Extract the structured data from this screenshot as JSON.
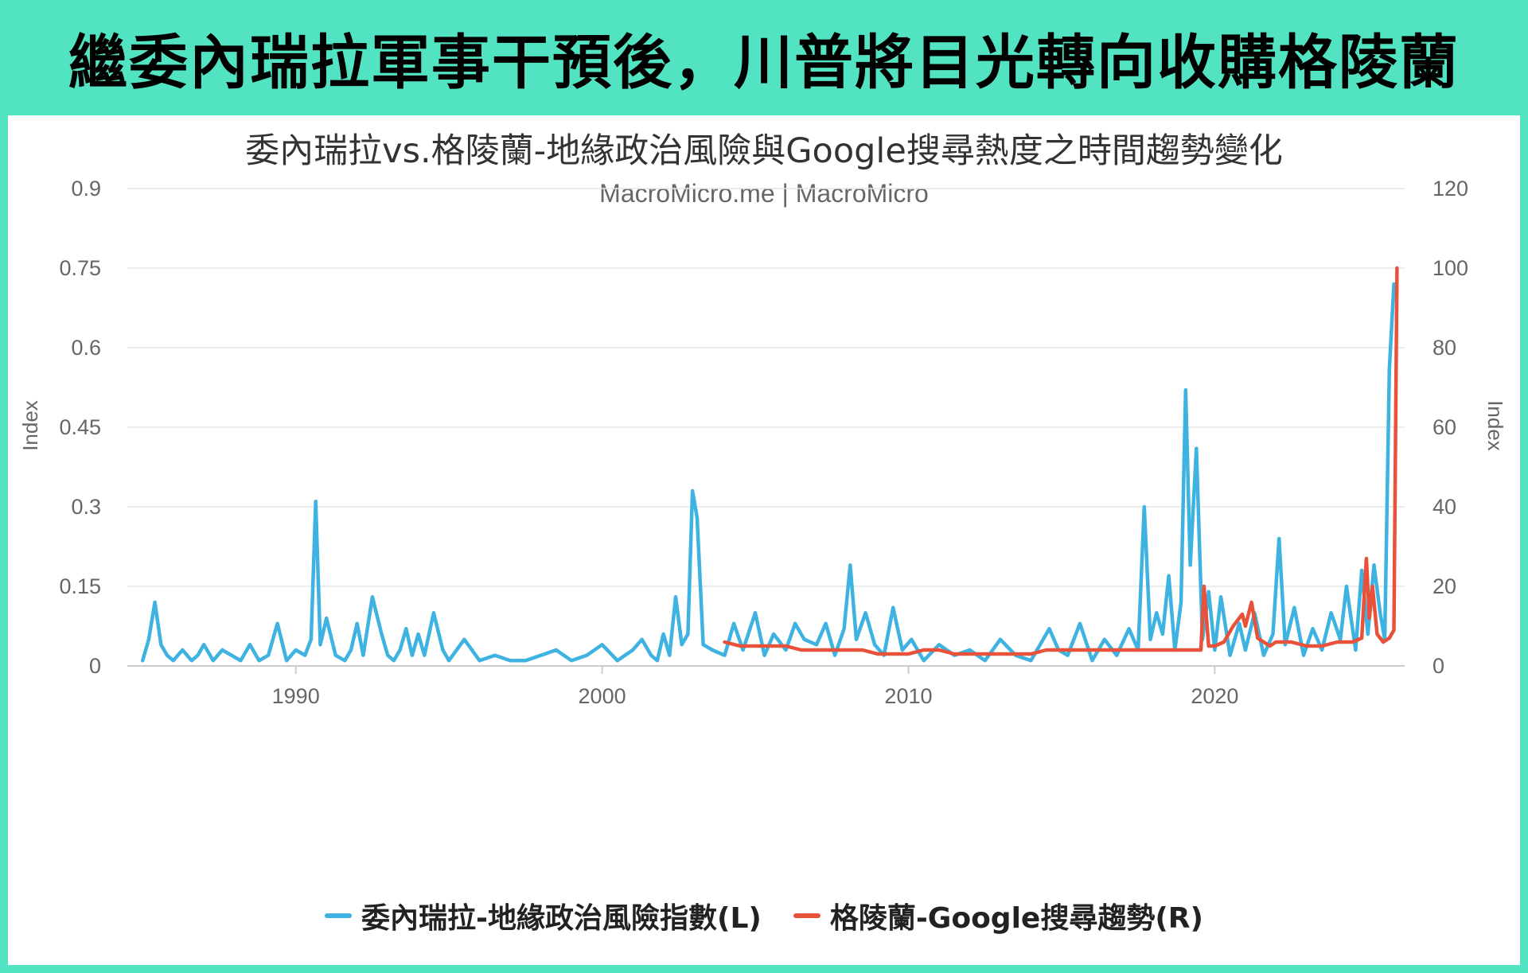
{
  "banner": {
    "title": "繼委內瑞拉軍事干預後，川普將目光轉向收購格陵蘭"
  },
  "colors": {
    "background": "#52e3c2",
    "venezuela": "#3eb2e0",
    "greenland": "#e8523b"
  },
  "chart_data": {
    "type": "line",
    "title": "委內瑞拉vs.格陵蘭-地緣政治風險與Google搜尋熱度之時間趨勢變化",
    "subtitle": "MacroMicro.me | MacroMicro",
    "ylabel_left": "Index",
    "ylabel_right": "Index",
    "xlim": [
      1984.5,
      2026.2
    ],
    "ylim_left": [
      0,
      0.9
    ],
    "ylim_right": [
      0,
      120
    ],
    "x_ticks": [
      {
        "label": "1990",
        "value": 1990
      },
      {
        "label": "2000",
        "value": 2000
      },
      {
        "label": "2010",
        "value": 2010
      },
      {
        "label": "2020",
        "value": 2020
      }
    ],
    "y_ticks_left": [
      {
        "label": "0",
        "value": 0
      },
      {
        "label": "0.15",
        "value": 0.15
      },
      {
        "label": "0.3",
        "value": 0.3
      },
      {
        "label": "0.45",
        "value": 0.45
      },
      {
        "label": "0.6",
        "value": 0.6
      },
      {
        "label": "0.75",
        "value": 0.75
      },
      {
        "label": "0.9",
        "value": 0.9
      }
    ],
    "y_ticks_right": [
      {
        "label": "0",
        "value": 0
      },
      {
        "label": "20",
        "value": 20
      },
      {
        "label": "40",
        "value": 40
      },
      {
        "label": "60",
        "value": 60
      },
      {
        "label": "80",
        "value": 80
      },
      {
        "label": "100",
        "value": 100
      },
      {
        "label": "120",
        "value": 120
      }
    ],
    "grid": true,
    "legend_position": "bottom",
    "series": [
      {
        "name": "委內瑞拉-地緣政治風險指數(L)",
        "axis": "left",
        "color": "#3eb2e0",
        "x": [
          1985.0,
          1985.2,
          1985.4,
          1985.6,
          1985.8,
          1986.0,
          1986.3,
          1986.6,
          1986.8,
          1987.0,
          1987.3,
          1987.6,
          1987.9,
          1988.2,
          1988.5,
          1988.8,
          1989.1,
          1989.4,
          1989.7,
          1990.0,
          1990.3,
          1990.5,
          1990.65,
          1990.8,
          1991.0,
          1991.3,
          1991.6,
          1991.8,
          1992.0,
          1992.2,
          1992.5,
          1992.8,
          1993.0,
          1993.2,
          1993.4,
          1993.6,
          1993.8,
          1994.0,
          1994.2,
          1994.5,
          1994.8,
          1995.0,
          1995.5,
          1996.0,
          1996.5,
          1997.0,
          1997.5,
          1998.0,
          1998.5,
          1999.0,
          1999.5,
          2000.0,
          2000.5,
          2001.0,
          2001.3,
          2001.6,
          2001.8,
          2002.0,
          2002.2,
          2002.4,
          2002.6,
          2002.8,
          2002.95,
          2003.1,
          2003.3,
          2003.6,
          2004.0,
          2004.3,
          2004.6,
          2005.0,
          2005.3,
          2005.6,
          2006.0,
          2006.3,
          2006.6,
          2007.0,
          2007.3,
          2007.6,
          2007.9,
          2008.1,
          2008.3,
          2008.6,
          2008.9,
          2009.2,
          2009.5,
          2009.8,
          2010.1,
          2010.5,
          2011.0,
          2011.5,
          2012.0,
          2012.5,
          2013.0,
          2013.5,
          2014.0,
          2014.3,
          2014.6,
          2014.9,
          2015.2,
          2015.6,
          2016.0,
          2016.4,
          2016.8,
          2017.2,
          2017.5,
          2017.7,
          2017.9,
          2018.1,
          2018.3,
          2018.5,
          2018.7,
          2018.9,
          2019.05,
          2019.2,
          2019.4,
          2019.6,
          2019.8,
          2020.0,
          2020.2,
          2020.5,
          2020.8,
          2021.0,
          2021.3,
          2021.6,
          2021.9,
          2022.1,
          2022.3,
          2022.6,
          2022.9,
          2023.2,
          2023.5,
          2023.8,
          2024.1,
          2024.3,
          2024.6,
          2024.8,
          2025.0,
          2025.2,
          2025.4,
          2025.55,
          2025.7,
          2025.85
        ],
        "values": [
          0.01,
          0.05,
          0.12,
          0.04,
          0.02,
          0.01,
          0.03,
          0.01,
          0.02,
          0.04,
          0.01,
          0.03,
          0.02,
          0.01,
          0.04,
          0.01,
          0.02,
          0.08,
          0.01,
          0.03,
          0.02,
          0.05,
          0.31,
          0.04,
          0.09,
          0.02,
          0.01,
          0.03,
          0.08,
          0.02,
          0.13,
          0.06,
          0.02,
          0.01,
          0.03,
          0.07,
          0.02,
          0.06,
          0.02,
          0.1,
          0.03,
          0.01,
          0.05,
          0.01,
          0.02,
          0.01,
          0.01,
          0.02,
          0.03,
          0.01,
          0.02,
          0.04,
          0.01,
          0.03,
          0.05,
          0.02,
          0.01,
          0.06,
          0.02,
          0.13,
          0.04,
          0.06,
          0.33,
          0.28,
          0.04,
          0.03,
          0.02,
          0.08,
          0.03,
          0.1,
          0.02,
          0.06,
          0.03,
          0.08,
          0.05,
          0.04,
          0.08,
          0.02,
          0.07,
          0.19,
          0.05,
          0.1,
          0.04,
          0.02,
          0.11,
          0.03,
          0.05,
          0.01,
          0.04,
          0.02,
          0.03,
          0.01,
          0.05,
          0.02,
          0.01,
          0.04,
          0.07,
          0.03,
          0.02,
          0.08,
          0.01,
          0.05,
          0.02,
          0.07,
          0.03,
          0.3,
          0.05,
          0.1,
          0.06,
          0.17,
          0.03,
          0.12,
          0.52,
          0.19,
          0.41,
          0.05,
          0.14,
          0.03,
          0.13,
          0.02,
          0.08,
          0.03,
          0.1,
          0.02,
          0.06,
          0.24,
          0.04,
          0.11,
          0.02,
          0.07,
          0.03,
          0.1,
          0.05,
          0.15,
          0.03,
          0.18,
          0.06,
          0.19,
          0.1,
          0.05,
          0.56,
          0.72
        ]
      },
      {
        "name": "格陵蘭-Google搜尋趨勢(R)",
        "axis": "right",
        "color": "#e8523b",
        "x": [
          2004.0,
          2004.5,
          2005.0,
          2005.5,
          2006.0,
          2006.5,
          2007.0,
          2007.5,
          2008.0,
          2008.5,
          2009.0,
          2009.5,
          2010.0,
          2010.5,
          2011.0,
          2011.5,
          2012.0,
          2012.5,
          2013.0,
          2013.5,
          2014.0,
          2014.5,
          2015.0,
          2015.5,
          2016.0,
          2016.5,
          2017.0,
          2017.5,
          2018.0,
          2018.5,
          2019.0,
          2019.4,
          2019.55,
          2019.65,
          2019.8,
          2020.0,
          2020.3,
          2020.6,
          2020.9,
          2021.0,
          2021.2,
          2021.4,
          2021.6,
          2021.8,
          2022.0,
          2022.5,
          2023.0,
          2023.5,
          2024.0,
          2024.5,
          2024.8,
          2024.95,
          2025.05,
          2025.15,
          2025.3,
          2025.5,
          2025.7,
          2025.85,
          2025.95
        ],
        "values": [
          6,
          5,
          5,
          5,
          5,
          4,
          4,
          4,
          4,
          4,
          3,
          3,
          3,
          4,
          4,
          3,
          3,
          3,
          3,
          3,
          3,
          4,
          4,
          4,
          4,
          4,
          4,
          4,
          4,
          4,
          4,
          4,
          4,
          20,
          5,
          5,
          6,
          10,
          13,
          10,
          16,
          7,
          6,
          5,
          6,
          6,
          5,
          5,
          6,
          6,
          7,
          27,
          12,
          20,
          8,
          6,
          7,
          9,
          100
        ]
      }
    ]
  }
}
